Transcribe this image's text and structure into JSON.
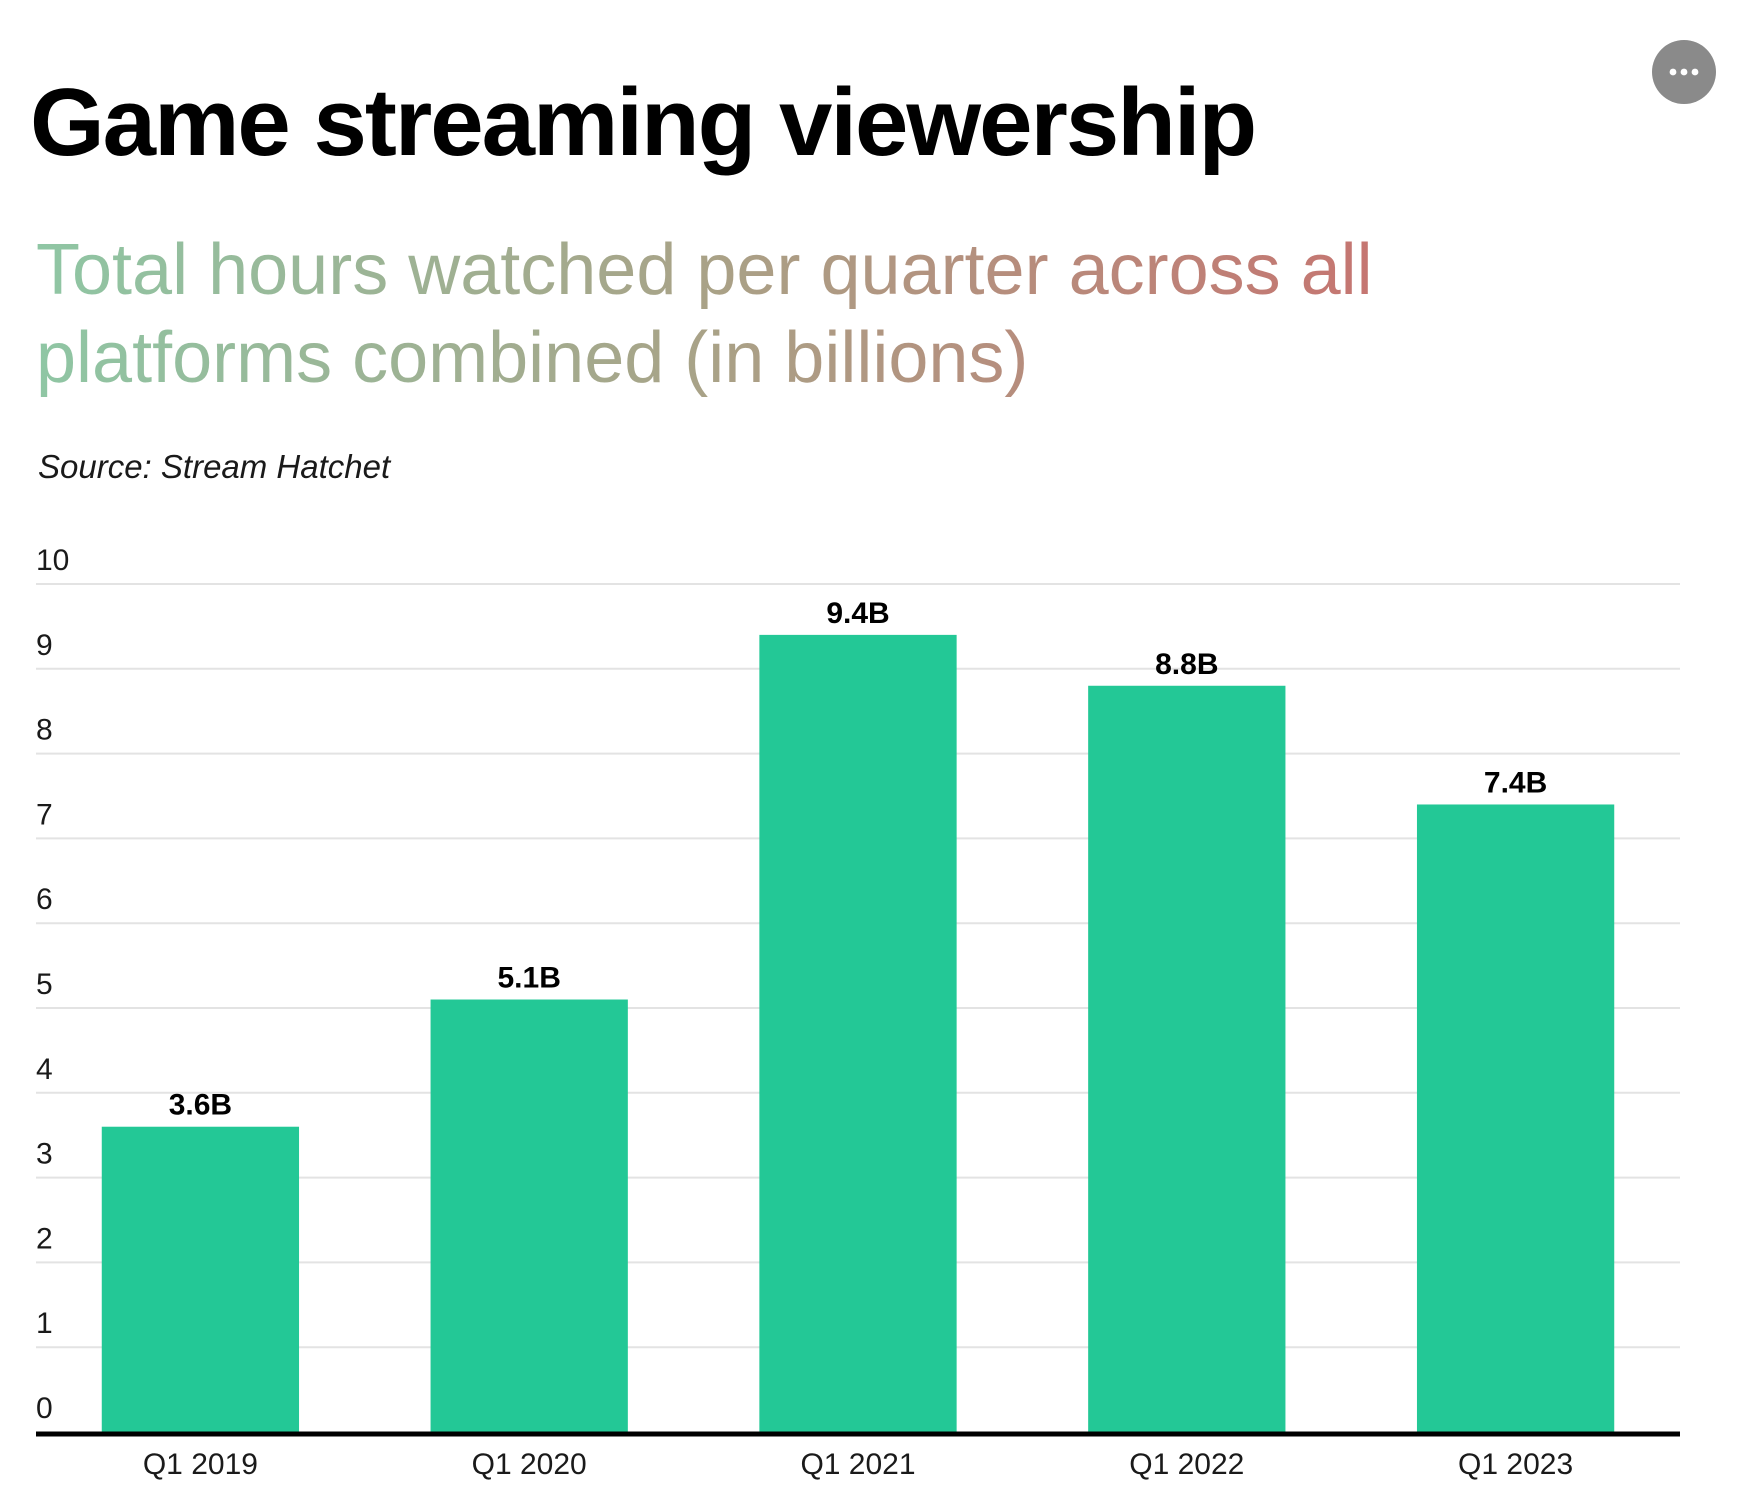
{
  "header": {
    "title": "Game streaming viewership",
    "subtitle": "Total hours watched per quarter across all platforms combined (in billions)",
    "source": "Source: Stream Hatchet",
    "more_icon": "more-horizontal-icon"
  },
  "colors": {
    "bar": "#23c896",
    "grid": "#e3e3e3",
    "axis": "#000000",
    "subtitle_gradient": [
      "#8fc6a4",
      "#a9a287",
      "#c8716f"
    ],
    "more_button": "#8a8a8a"
  },
  "chart_data": {
    "type": "bar",
    "title": "Game streaming viewership",
    "subtitle": "Total hours watched per quarter across all platforms combined (in billions)",
    "source": "Source: Stream Hatchet",
    "categories": [
      "Q1 2019",
      "Q1 2020",
      "Q1 2021",
      "Q1 2022",
      "Q1 2023"
    ],
    "values": [
      3.6,
      5.1,
      9.4,
      8.8,
      7.4
    ],
    "data_labels": [
      "3.6B",
      "5.1B",
      "9.4B",
      "8.8B",
      "7.4B"
    ],
    "xlabel": "",
    "ylabel": "",
    "ylim": [
      0,
      10
    ],
    "yticks": [
      0,
      1,
      2,
      3,
      4,
      5,
      6,
      7,
      8,
      9,
      10
    ],
    "ytick_labels": [
      "0",
      "1",
      "2",
      "3",
      "4",
      "5",
      "6",
      "7",
      "8",
      "9",
      "10"
    ],
    "grid": true,
    "legend": "none"
  }
}
